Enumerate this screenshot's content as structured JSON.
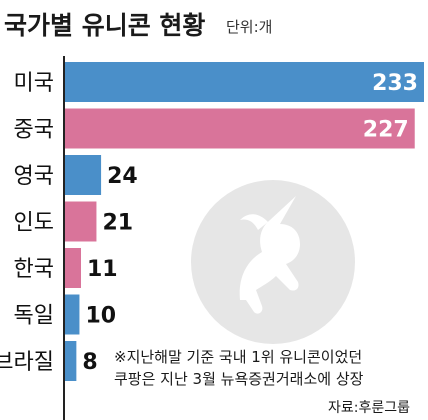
{
  "header": {
    "title": "국가별 유니콘 현황",
    "unit": "단위:개"
  },
  "chart_data": {
    "type": "bar",
    "orientation": "horizontal",
    "categories": [
      "미국",
      "중국",
      "영국",
      "인도",
      "한국",
      "독일",
      "브라질"
    ],
    "values": [
      233,
      227,
      24,
      21,
      11,
      10,
      8
    ],
    "bar_colors": [
      "#4a8fc9",
      "#d9749a",
      "#4a8fc9",
      "#d9749a",
      "#d9749a",
      "#4a8fc9",
      "#4a8fc9"
    ],
    "axis_color": "#222222",
    "title": "국가별 유니콘 현황",
    "xlabel": "",
    "ylabel": "",
    "xlim": [
      0,
      233
    ],
    "grid": false,
    "legend": "none"
  },
  "note": {
    "line1": "※지난해말 기준 국내 1위 유니콘이었던",
    "line2": "쿠팡은 지난 3월 뉴욕증권거래소에 상장"
  },
  "source": "자료:후룬그룹",
  "colors": {
    "blue": "#4a8fc9",
    "pink": "#d9749a",
    "watermark": "#e6e6e6"
  },
  "icons": {
    "watermark": "unicorn-icon"
  }
}
